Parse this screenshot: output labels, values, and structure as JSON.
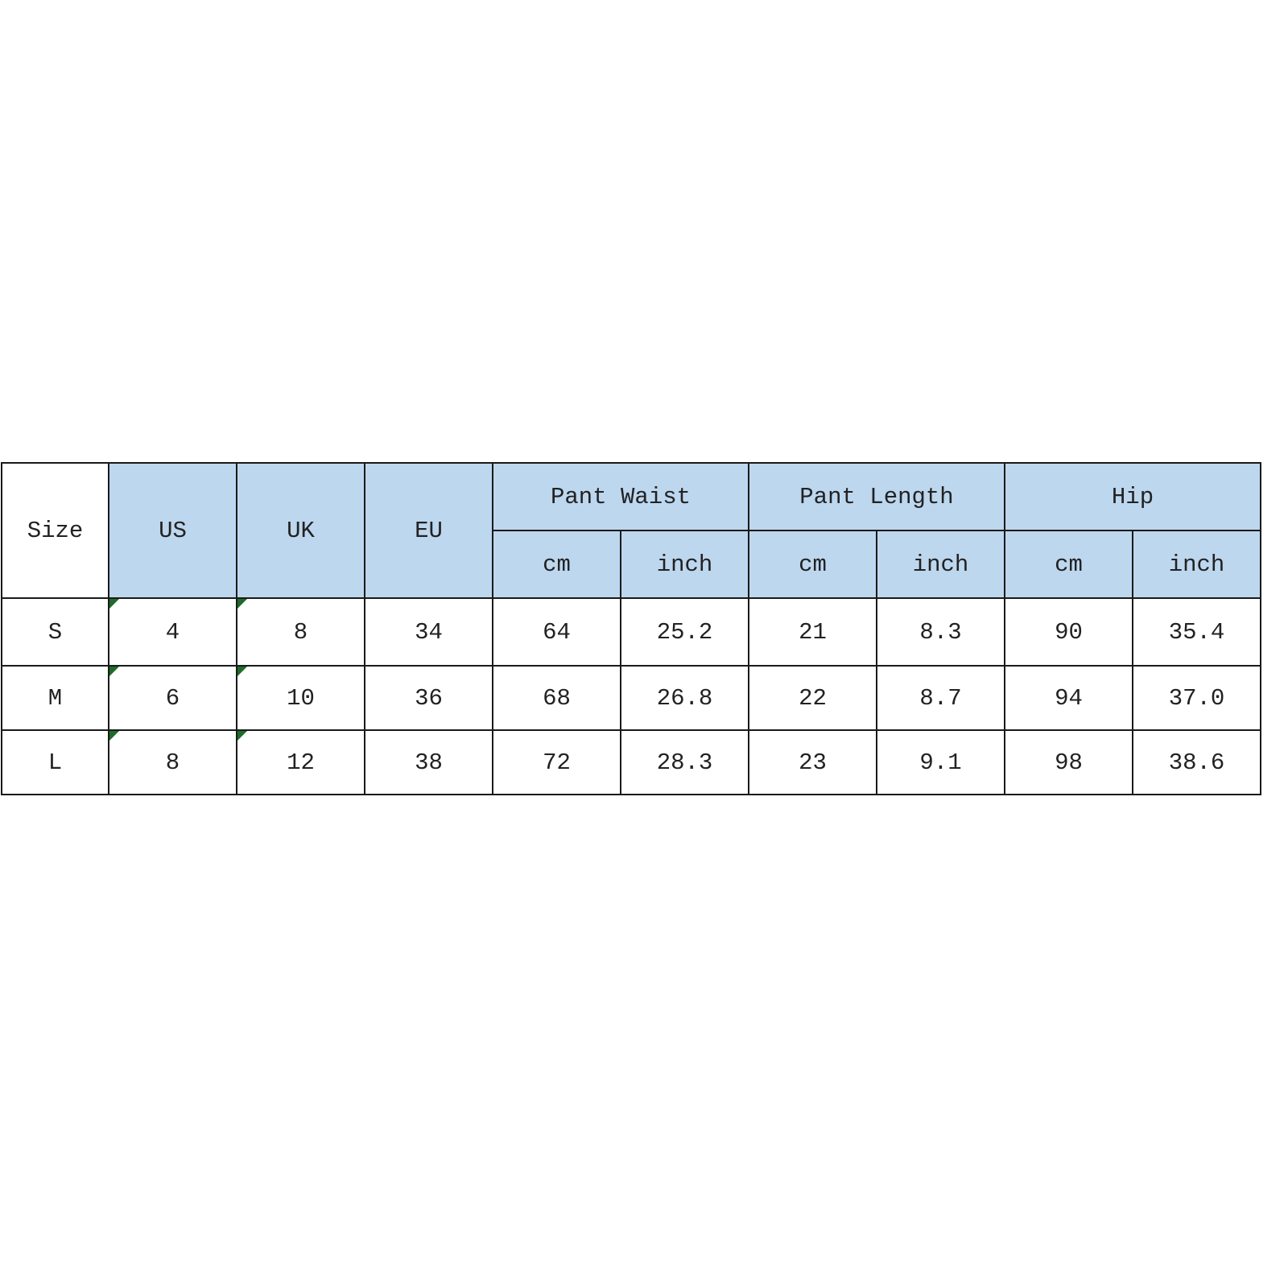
{
  "table": {
    "header": {
      "size": "Size",
      "us": "US",
      "uk": "UK",
      "eu": "EU",
      "groups": [
        "Pant Waist",
        "Pant Length",
        "Hip"
      ],
      "units": [
        "cm",
        "inch",
        "cm",
        "inch",
        "cm",
        "inch"
      ]
    },
    "rows": [
      [
        "S",
        "4",
        "8",
        "34",
        "64",
        "25.2",
        "21",
        "8.3",
        "90",
        "35.4"
      ],
      [
        "M",
        "6",
        "10",
        "36",
        "68",
        "26.8",
        "22",
        "8.7",
        "94",
        "37.0"
      ],
      [
        "L",
        "8",
        "12",
        "38",
        "72",
        "28.3",
        "23",
        "9.1",
        "98",
        "38.6"
      ]
    ],
    "colors": {
      "header_bg": "#bdd7ee",
      "border": "#1a1a1a",
      "comment_flag": "#1e6b2a"
    }
  }
}
